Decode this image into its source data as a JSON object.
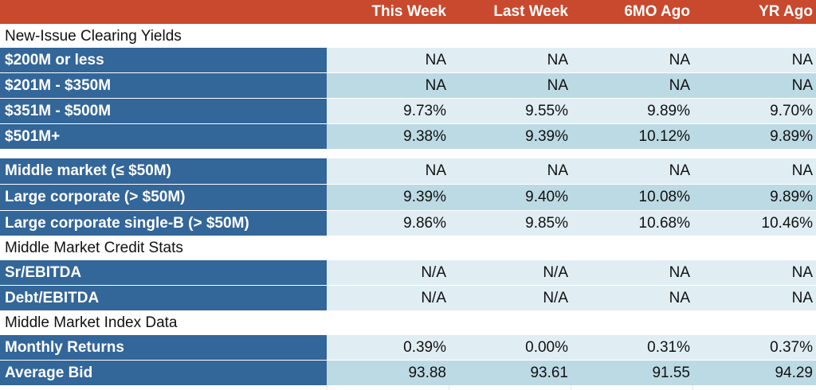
{
  "header": {
    "col1": "This Week",
    "col2": "Last Week",
    "col3": "6MO Ago",
    "col4": "YR Ago"
  },
  "sections": {
    "clearing": "New-Issue Clearing Yields",
    "credit": "Middle Market Credit Stats",
    "index": "Middle Market Index Data"
  },
  "rows": [
    {
      "label": "$200M or less",
      "v": [
        "NA",
        "NA",
        "NA",
        "NA"
      ]
    },
    {
      "label": "$201M - $350M",
      "v": [
        "NA",
        "NA",
        "NA",
        "NA"
      ]
    },
    {
      "label": "$351M - $500M",
      "v": [
        "9.73%",
        "9.55%",
        "9.89%",
        "9.70%"
      ]
    },
    {
      "label": "$501M+",
      "v": [
        "9.38%",
        "9.39%",
        "10.12%",
        "9.89%"
      ]
    },
    {
      "label": "Middle market (≤ $50M)",
      "v": [
        "NA",
        "NA",
        "NA",
        "NA"
      ]
    },
    {
      "label": "Large corporate (> $50M)",
      "v": [
        "9.39%",
        "9.40%",
        "10.08%",
        "9.89%"
      ]
    },
    {
      "label": "Large corporate single-B (> $50M)",
      "v": [
        "9.86%",
        "9.85%",
        "10.68%",
        "10.46%"
      ]
    },
    {
      "label": "Sr/EBITDA",
      "v": [
        "N/A",
        "N/A",
        "NA",
        "NA"
      ]
    },
    {
      "label": "Debt/EBITDA",
      "v": [
        "N/A",
        "N/A",
        "NA",
        "NA"
      ]
    },
    {
      "label": "Monthly Returns",
      "v": [
        "0.39%",
        "0.00%",
        "0.31%",
        "0.37%"
      ]
    },
    {
      "label": "Average Bid",
      "v": [
        "93.88",
        "93.61",
        "91.55",
        "94.29"
      ]
    }
  ]
}
